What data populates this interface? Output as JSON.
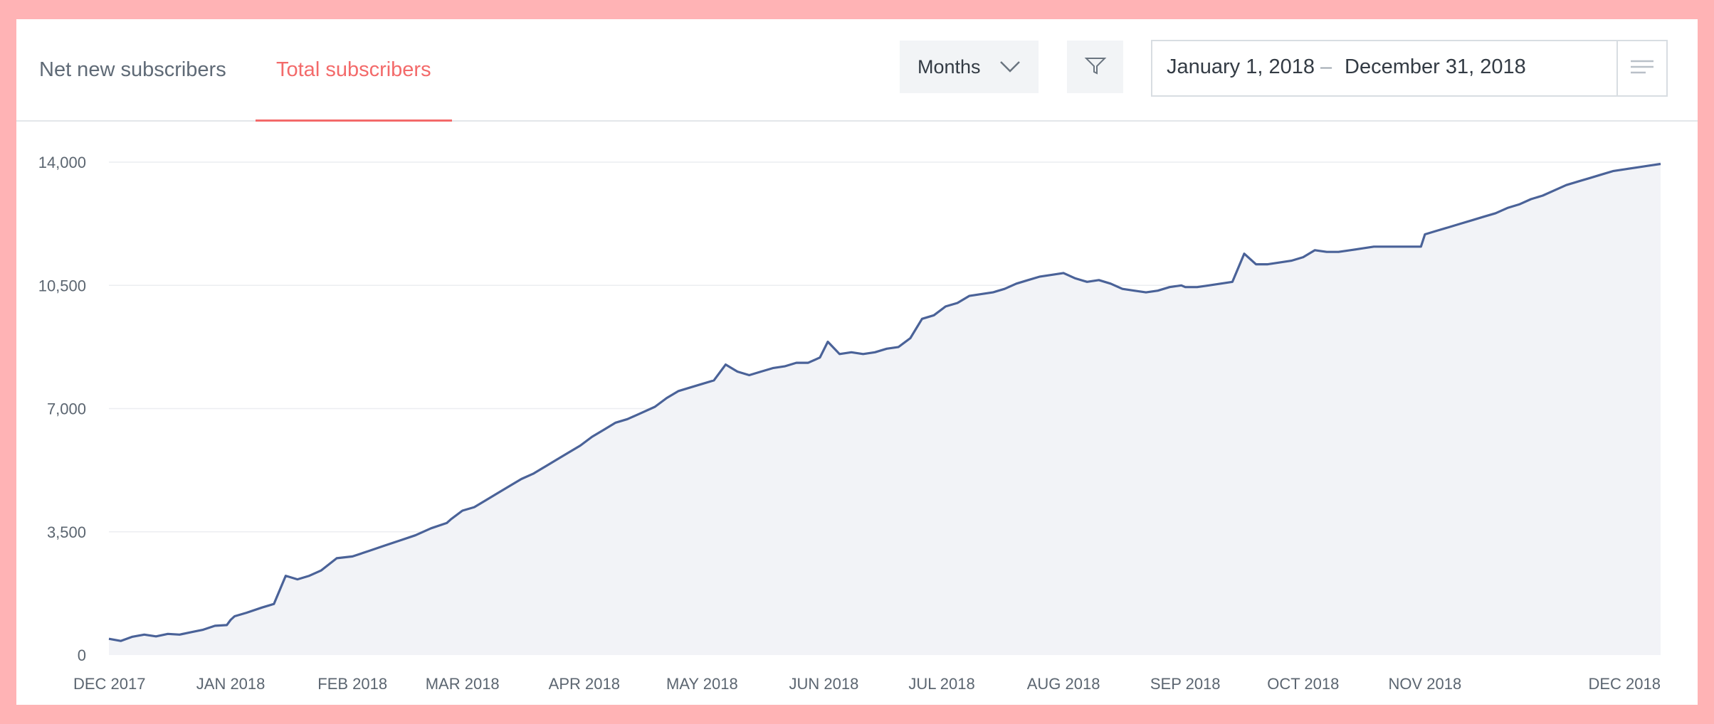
{
  "tabs": [
    {
      "label": "Net new subscribers",
      "active": false
    },
    {
      "label": "Total subscribers",
      "active": true
    }
  ],
  "controls": {
    "period_label": "Months",
    "date_start": "January 1, 2018",
    "date_separator": "–",
    "date_end": "December 31, 2018"
  },
  "colors": {
    "accent": "#f36a6a",
    "line": "#4a6298",
    "area": "#f2f3f7",
    "background": "#ffb3b5"
  },
  "icons": [
    "chevron-down-icon",
    "filter-icon",
    "menu-lines-icon"
  ],
  "chart_data": {
    "type": "area",
    "title": "",
    "xlabel": "",
    "ylabel": "",
    "ylim": [
      0,
      14000
    ],
    "yticks": [
      0,
      3500,
      7000,
      10500,
      14000
    ],
    "ytick_labels": [
      "0",
      "3,500",
      "7,000",
      "10,500",
      "14,000"
    ],
    "xlim": [
      "2017-12-01",
      "2018-12-31"
    ],
    "xticks": [
      "2017-12-01",
      "2018-01-01",
      "2018-02-01",
      "2018-03-01",
      "2018-04-01",
      "2018-05-01",
      "2018-06-01",
      "2018-07-01",
      "2018-08-01",
      "2018-09-01",
      "2018-10-01",
      "2018-11-01",
      "2018-12-01"
    ],
    "xtick_labels": [
      "DEC 2017",
      "JAN 2018",
      "FEB 2018",
      "MAR 2018",
      "APR 2018",
      "MAY 2018",
      "JUN 2018",
      "JUL 2018",
      "AUG 2018",
      "SEP 2018",
      "OCT 2018",
      "NOV 2018",
      "DEC 2018"
    ],
    "grid": true,
    "series": [
      {
        "x": [
          "2017-12-01",
          "2017-12-04",
          "2017-12-07",
          "2017-12-10",
          "2017-12-13",
          "2017-12-16",
          "2017-12-19",
          "2017-12-22",
          "2017-12-25",
          "2017-12-28",
          "2017-12-31",
          "2018-01-01",
          "2018-01-02",
          "2018-01-05",
          "2018-01-09",
          "2018-01-12",
          "2018-01-15",
          "2018-01-18",
          "2018-01-21",
          "2018-01-24",
          "2018-01-28",
          "2018-02-01",
          "2018-02-05",
          "2018-02-09",
          "2018-02-13",
          "2018-02-17",
          "2018-02-21",
          "2018-02-25",
          "2018-02-26",
          "2018-03-01",
          "2018-03-04",
          "2018-03-07",
          "2018-03-10",
          "2018-03-13",
          "2018-03-16",
          "2018-03-19",
          "2018-03-22",
          "2018-03-25",
          "2018-03-28",
          "2018-03-31",
          "2018-04-03",
          "2018-04-06",
          "2018-04-09",
          "2018-04-12",
          "2018-04-15",
          "2018-04-19",
          "2018-04-22",
          "2018-04-25",
          "2018-04-28",
          "2018-05-01",
          "2018-05-04",
          "2018-05-07",
          "2018-05-10",
          "2018-05-13",
          "2018-05-16",
          "2018-05-19",
          "2018-05-22",
          "2018-05-25",
          "2018-05-28",
          "2018-05-31",
          "2018-06-02",
          "2018-06-05",
          "2018-06-08",
          "2018-06-11",
          "2018-06-14",
          "2018-06-17",
          "2018-06-20",
          "2018-06-23",
          "2018-06-26",
          "2018-06-29",
          "2018-07-02",
          "2018-07-05",
          "2018-07-08",
          "2018-07-11",
          "2018-07-14",
          "2018-07-17",
          "2018-07-20",
          "2018-07-23",
          "2018-07-26",
          "2018-07-29",
          "2018-08-01",
          "2018-08-04",
          "2018-08-07",
          "2018-08-10",
          "2018-08-13",
          "2018-08-16",
          "2018-08-19",
          "2018-08-22",
          "2018-08-25",
          "2018-08-28",
          "2018-08-31",
          "2018-09-01",
          "2018-09-04",
          "2018-09-07",
          "2018-09-10",
          "2018-09-13",
          "2018-09-16",
          "2018-09-19",
          "2018-09-22",
          "2018-09-25",
          "2018-09-28",
          "2018-10-01",
          "2018-10-04",
          "2018-10-07",
          "2018-10-10",
          "2018-10-13",
          "2018-10-16",
          "2018-10-19",
          "2018-10-22",
          "2018-10-25",
          "2018-10-28",
          "2018-10-31",
          "2018-11-01",
          "2018-11-04",
          "2018-11-07",
          "2018-11-10",
          "2018-11-13",
          "2018-11-16",
          "2018-11-19",
          "2018-11-22",
          "2018-11-25",
          "2018-11-28",
          "2018-12-01",
          "2018-12-04",
          "2018-12-07",
          "2018-12-10",
          "2018-12-13",
          "2018-12-16",
          "2018-12-19",
          "2018-12-22",
          "2018-12-25",
          "2018-12-28",
          "2018-12-31"
        ],
        "values": [
          460,
          400,
          520,
          580,
          530,
          600,
          580,
          650,
          720,
          830,
          850,
          1000,
          1100,
          1200,
          1350,
          1450,
          2250,
          2150,
          2250,
          2400,
          2750,
          2800,
          2950,
          3100,
          3250,
          3400,
          3600,
          3750,
          3850,
          4100,
          4200,
          4400,
          4600,
          4800,
          5000,
          5150,
          5350,
          5550,
          5750,
          5950,
          6200,
          6400,
          6600,
          6700,
          6850,
          7050,
          7300,
          7500,
          7600,
          7700,
          7800,
          8250,
          8050,
          7950,
          8050,
          8150,
          8200,
          8300,
          8300,
          8450,
          8900,
          8550,
          8600,
          8550,
          8600,
          8700,
          8750,
          9000,
          9550,
          9650,
          9900,
          10000,
          10200,
          10250,
          10300,
          10400,
          10550,
          10650,
          10750,
          10800,
          10850,
          10700,
          10600,
          10650,
          10550,
          10400,
          10350,
          10300,
          10350,
          10450,
          10500,
          10450,
          10450,
          10500,
          10550,
          10600,
          11400,
          11100,
          11100,
          11150,
          11200,
          11300,
          11500,
          11450,
          11450,
          11500,
          11550,
          11600,
          11600,
          11600,
          11600,
          11600,
          11950,
          12050,
          12150,
          12250,
          12350,
          12450,
          12550,
          12700,
          12800,
          12950,
          13050,
          13200,
          13350,
          13450,
          13550,
          13650,
          13750,
          13800,
          13850,
          13900,
          13950
        ]
      }
    ]
  }
}
